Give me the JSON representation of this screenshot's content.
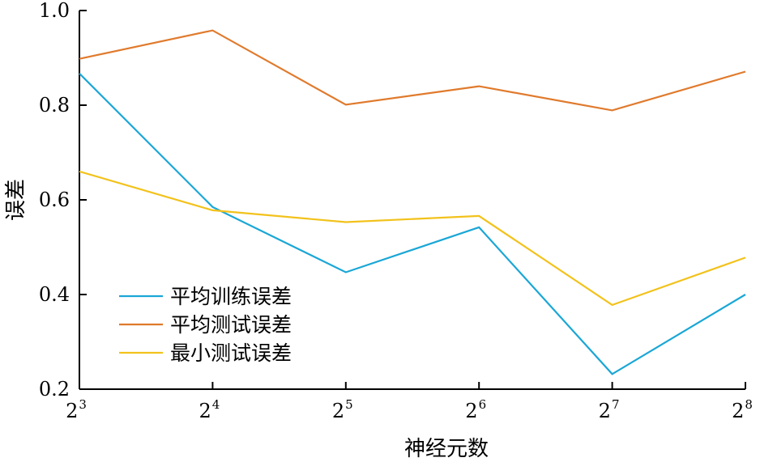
{
  "chart_data": {
    "type": "line",
    "xlabel": "神经元数",
    "ylabel": "误差",
    "x_base": "2",
    "x_exponents": [
      "3",
      "4",
      "5",
      "6",
      "7",
      "8"
    ],
    "x": [
      8,
      16,
      32,
      64,
      128,
      256
    ],
    "x_scale": "log2",
    "ylim": [
      0.2,
      1.0
    ],
    "yticks": [
      "0.2",
      "0.4",
      "0.6",
      "0.8",
      "1.0"
    ],
    "ytick_values": [
      0.2,
      0.4,
      0.6,
      0.8,
      1.0
    ],
    "grid": false,
    "legend_position": "lower-left",
    "series": [
      {
        "name": "平均训练误差",
        "color": "#1aa7d6",
        "values": [
          0.867,
          0.585,
          0.447,
          0.542,
          0.232,
          0.4
        ]
      },
      {
        "name": "平均测试误差",
        "color": "#e07a2c",
        "values": [
          0.898,
          0.958,
          0.801,
          0.84,
          0.789,
          0.871
        ]
      },
      {
        "name": "最小测试误差",
        "color": "#f2c21b",
        "values": [
          0.66,
          0.578,
          0.553,
          0.566,
          0.378,
          0.478
        ]
      }
    ]
  }
}
